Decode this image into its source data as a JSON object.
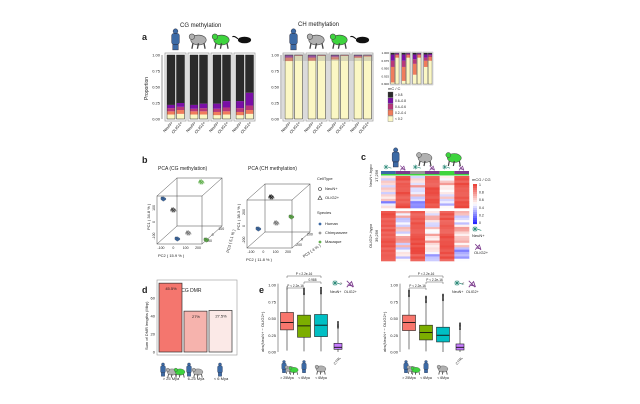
{
  "colors": {
    "human": "#3c6aa5",
    "chimp": "#9a9a9a",
    "macaque": "#3ed43e",
    "mouse": "#111111",
    "neun": "#2e8b7a",
    "olig2": "#7b3a8c"
  },
  "icons": [
    "human-icon",
    "chimpanzee-icon",
    "macaque-icon",
    "mouse-icon",
    "neun-neuron-icon",
    "olig2-glia-icon"
  ],
  "chart_data": [
    {
      "panel": "a",
      "type": "bar",
      "stacked": true,
      "title_cg": "CG methylation",
      "title_ch": "CH methylation",
      "ylabel": "Proportion",
      "ylim": [
        0,
        1
      ],
      "yticks": [
        "0.00",
        "0.25",
        "0.50",
        "0.75",
        "1.00"
      ],
      "inset_yticks": [
        "0.900",
        "0.925",
        "0.950",
        "0.975",
        "1.000"
      ],
      "categories": [
        "NeuN+",
        "OLIG2+",
        "NeuN+",
        "OLIG2+",
        "NeuN+",
        "OLIG2+",
        "NeuN+",
        "OLIG2+"
      ],
      "species": [
        "Human",
        "Human",
        "Chimpanzee",
        "Chimpanzee",
        "Macaque",
        "Macaque",
        "Mouse",
        "Mouse"
      ],
      "legend_title": "mC / C",
      "legend": [
        {
          "name": "> 0.8",
          "color": "#2b2b2b"
        },
        {
          "name": "0.6–0.8",
          "color": "#7a0fa6"
        },
        {
          "name": "0.4–0.6",
          "color": "#b8377a"
        },
        {
          "name": "0.2–0.4",
          "color": "#f07c5c"
        },
        {
          "name": "< 0.2",
          "color": "#fbf7c4"
        }
      ],
      "cg_series": [
        {
          "name": "< 0.2",
          "values": [
            0.07,
            0.08,
            0.07,
            0.07,
            0.06,
            0.07,
            0.06,
            0.08
          ]
        },
        {
          "name": "0.2–0.4",
          "values": [
            0.05,
            0.06,
            0.05,
            0.05,
            0.05,
            0.05,
            0.05,
            0.06
          ]
        },
        {
          "name": "0.4–0.6",
          "values": [
            0.05,
            0.05,
            0.04,
            0.05,
            0.05,
            0.06,
            0.06,
            0.07
          ]
        },
        {
          "name": "0.6–0.8",
          "values": [
            0.05,
            0.06,
            0.06,
            0.07,
            0.08,
            0.1,
            0.11,
            0.2
          ]
        },
        {
          "name": "> 0.8",
          "values": [
            0.78,
            0.75,
            0.78,
            0.76,
            0.76,
            0.72,
            0.72,
            0.59
          ]
        }
      ],
      "ch_series": [
        {
          "name": "< 0.2",
          "values": [
            0.905,
            0.985,
            0.91,
            0.985,
            0.93,
            0.985,
            0.955,
            0.975
          ]
        },
        {
          "name": "0.2–0.4",
          "values": [
            0.05,
            0.008,
            0.045,
            0.008,
            0.035,
            0.008,
            0.02,
            0.012
          ]
        },
        {
          "name": "0.4–0.6",
          "values": [
            0.02,
            0.004,
            0.02,
            0.004,
            0.015,
            0.004,
            0.01,
            0.006
          ]
        },
        {
          "name": "0.6–0.8",
          "values": [
            0.02,
            0.002,
            0.02,
            0.002,
            0.015,
            0.002,
            0.01,
            0.004
          ]
        },
        {
          "name": "> 0.8",
          "values": [
            0.005,
            0.001,
            0.005,
            0.001,
            0.005,
            0.001,
            0.005,
            0.003
          ]
        }
      ]
    },
    {
      "panel": "b",
      "type": "scatter",
      "plots": [
        {
          "title": "PCA (CG methylation)",
          "xlabel": "PC2 ( 15.9 % )",
          "ylabel": "PC1 ( 34.8 % )",
          "zlabel": "PC3 ( 5.1 % )",
          "xticks": [
            "-100",
            "0",
            "100",
            "200"
          ],
          "yticks": [
            "-100",
            "0",
            "100"
          ],
          "zticks": [
            "-100",
            "0",
            "100"
          ]
        },
        {
          "title": "PCA (CH methylation)",
          "xlabel": "PC2 ( 11.8 % )",
          "ylabel": "PC1 ( 38.3 % )",
          "zlabel": "PC3 ( 4 % )",
          "xticks": [
            "-100",
            "0",
            "100",
            "200"
          ],
          "yticks": [
            "-200",
            "0",
            "200"
          ],
          "zticks": [
            "-200",
            "0",
            "200"
          ]
        }
      ],
      "legend_celltype_title": "CellType",
      "legend_celltype": [
        {
          "name": "NeuN+",
          "shape": "circle"
        },
        {
          "name": "OLIG2+",
          "shape": "triangle"
        }
      ],
      "legend_species_title": "Species",
      "legend_species": [
        {
          "name": "Human",
          "color": "#3c6aa5"
        },
        {
          "name": "Chimpanzee",
          "color": "#9a9a9a"
        },
        {
          "name": "Macaque",
          "color": "#5fae4a"
        }
      ]
    },
    {
      "panel": "c",
      "type": "heatmap",
      "row_groups": [
        {
          "name": "NeuN+-hypo",
          "count": "17,256"
        },
        {
          "name": "OLIG2+-hypo",
          "count": "39,256"
        }
      ],
      "columns": [
        "Human NeuN+",
        "Human OLIG2+",
        "Chimpanzee NeuN+",
        "Chimpanzee OLIG2+",
        "Macaque NeuN+",
        "Macaque OLIG2+"
      ],
      "legend_title": "mCG / CG",
      "legend_ticks": [
        "1",
        "0.8",
        "0.6",
        "0.4",
        "0.2",
        "0"
      ],
      "cell_labels": [
        "NeuN+",
        "OLIG2+"
      ]
    },
    {
      "panel": "d",
      "type": "bar",
      "title": "Cell–type CG DMR",
      "ylabel": "Sum of DMR lengths (Mbp)",
      "yticks": [
        "0",
        "20",
        "40",
        "60"
      ],
      "ylim": [
        0,
        82
      ],
      "categories": [
        "> 25 Mya",
        "6-25 Mya",
        "< 6 Mya"
      ],
      "values": [
        76.5,
        45.4,
        46.2
      ],
      "data_labels": [
        "45.5%",
        "27%",
        "27.5%"
      ],
      "colors": [
        "#f4766e",
        "#f6b3ad",
        "#fbe9e7"
      ]
    },
    {
      "panel": "e",
      "type": "box",
      "ylim": [
        0,
        1
      ],
      "yticks": [
        "0.00",
        "0.25",
        "0.50",
        "0.75",
        "1.00"
      ],
      "categories": [
        "> 25Mya",
        "< 6Mya",
        "< 6Mya",
        "CTRL"
      ],
      "colors": [
        "#f8766d",
        "#7cae00",
        "#00bfc4",
        "#c77cff"
      ],
      "plots": [
        {
          "ylabel": "abs(NeuN+ − OLIG2+)",
          "legend": "NeuN+ > OLIG2+",
          "legend_left": "NeuN+",
          "legend_right": "OLIG2+",
          "pvalues": [
            "P < 2.2e-16",
            "P < 2.2e-16",
            "0.988"
          ],
          "boxes": [
            {
              "min": 0.02,
              "q1": 0.33,
              "median": 0.44,
              "q3": 0.59,
              "max": 0.98
            },
            {
              "min": 0.01,
              "q1": 0.22,
              "median": 0.39,
              "q3": 0.55,
              "max": 0.95
            },
            {
              "min": 0.01,
              "q1": 0.23,
              "median": 0.4,
              "q3": 0.56,
              "max": 0.96
            },
            {
              "min": 0.0,
              "q1": 0.04,
              "median": 0.07,
              "q3": 0.13,
              "max": 0.45
            }
          ]
        },
        {
          "ylabel": "abs(NeuN+ − OLIG2+)",
          "legend": "NeuN+ < OLIG2+",
          "legend_left": "NeuN+",
          "legend_right": "OLIG2+",
          "pvalues": [
            "P < 2.2e-16",
            "P < 2.2e-16",
            "P < 2.2e-16"
          ],
          "boxes": [
            {
              "min": 0.04,
              "q1": 0.32,
              "median": 0.44,
              "q3": 0.55,
              "max": 0.92
            },
            {
              "min": 0.01,
              "q1": 0.18,
              "median": 0.29,
              "q3": 0.4,
              "max": 0.83
            },
            {
              "min": 0.0,
              "q1": 0.15,
              "median": 0.25,
              "q3": 0.37,
              "max": 0.86
            },
            {
              "min": 0.0,
              "q1": 0.03,
              "median": 0.07,
              "q3": 0.12,
              "max": 0.43
            }
          ]
        }
      ]
    }
  ],
  "panel_labels": [
    "a",
    "b",
    "c",
    "d",
    "e"
  ]
}
